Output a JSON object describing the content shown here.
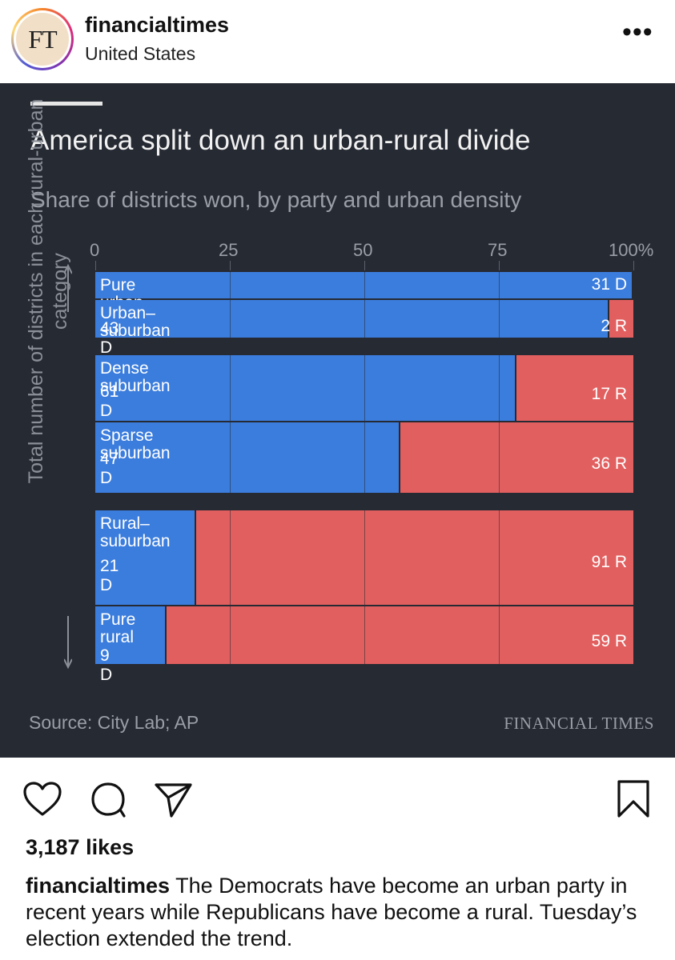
{
  "post": {
    "username": "financialtimes",
    "location": "United States",
    "avatar_text": "FT",
    "more_icon": "•••",
    "likes": "3,187 likes",
    "caption_user": "financialtimes",
    "caption_text": "The Democrats have become an urban party in recent years while Republicans have become a rural. Tuesday’s election extended the trend."
  },
  "icons": {
    "like": "heart-icon",
    "comment": "comment-icon",
    "share": "send-icon",
    "save": "bookmark-icon"
  },
  "chart_data": {
    "type": "bar",
    "stacked": true,
    "orientation": "horizontal",
    "title": "America split down an urban-rural divide",
    "subtitle": "Share of districts won, by party and urban density",
    "ylabel": "Total number of districts in each rural-urban category",
    "x_ticks": [
      "0",
      "25",
      "50",
      "75",
      "100%"
    ],
    "xlim": [
      0,
      100
    ],
    "colors": {
      "D": "#3b7ddd",
      "R": "#e25f5f",
      "background": "#262a33"
    },
    "categories": [
      {
        "name": "Pure urban",
        "d": 31,
        "r": 0,
        "d_label": "",
        "r_label": "31 D"
      },
      {
        "name": "Urban–suburban",
        "d": 43,
        "r": 2,
        "d_label": "43 D",
        "r_label": "2 R"
      },
      {
        "name": "Dense suburban",
        "d": 61,
        "r": 17,
        "d_label": "61 D",
        "r_label": "17 R"
      },
      {
        "name": "Sparse suburban",
        "d": 47,
        "r": 36,
        "d_label": "47 D",
        "r_label": "36 R"
      },
      {
        "name": "Rural–\nsuburban",
        "d": 21,
        "r": 91,
        "d_label": "21 D",
        "r_label": "91 R"
      },
      {
        "name": "Pure\nrural",
        "d": 9,
        "r": 59,
        "d_label": "9 D",
        "r_label": "59 R"
      }
    ],
    "source": "Source: City Lab; AP",
    "brand": "FINANCIAL TIMES"
  }
}
